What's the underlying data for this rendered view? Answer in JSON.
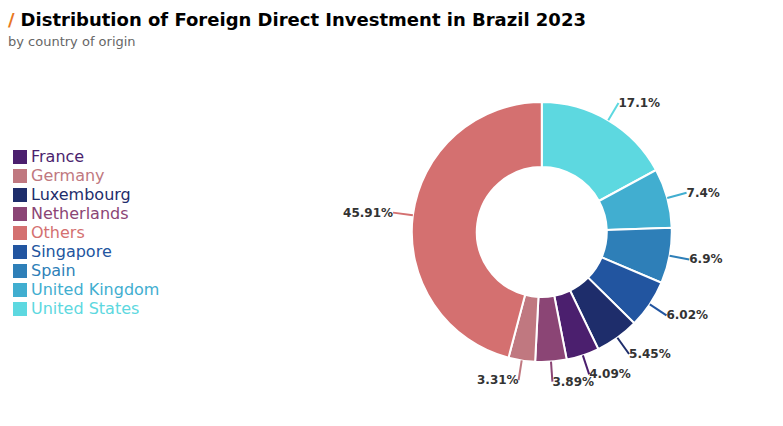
{
  "chart_data": {
    "type": "pie",
    "title": "Distribution of Foreign Direct Investment in Brazil 2023",
    "subtitle": "by country of origin",
    "annotations": [
      {
        "text": "/",
        "color": "#e87722"
      }
    ],
    "categories": [
      "United States",
      "United Kingdom",
      "Spain",
      "Singapore",
      "Luxembourg",
      "France",
      "Netherlands",
      "Germany",
      "Others"
    ],
    "values": [
      17.1,
      7.4,
      6.9,
      6.02,
      5.45,
      4.09,
      3.89,
      3.31,
      45.91
    ],
    "value_labels": [
      "17.1%",
      "7.4%",
      "6.9%",
      "6.02%",
      "5.45%",
      "4.09%",
      "3.89%",
      "3.31%",
      "45.91%"
    ],
    "colors": [
      "#5dd8e0",
      "#41aed0",
      "#2e7fb8",
      "#2255a0",
      "#1e2d6b",
      "#4b1f6e",
      "#8b4575",
      "#c07880",
      "#d47070"
    ],
    "data_labels": true,
    "legend": "left"
  }
}
